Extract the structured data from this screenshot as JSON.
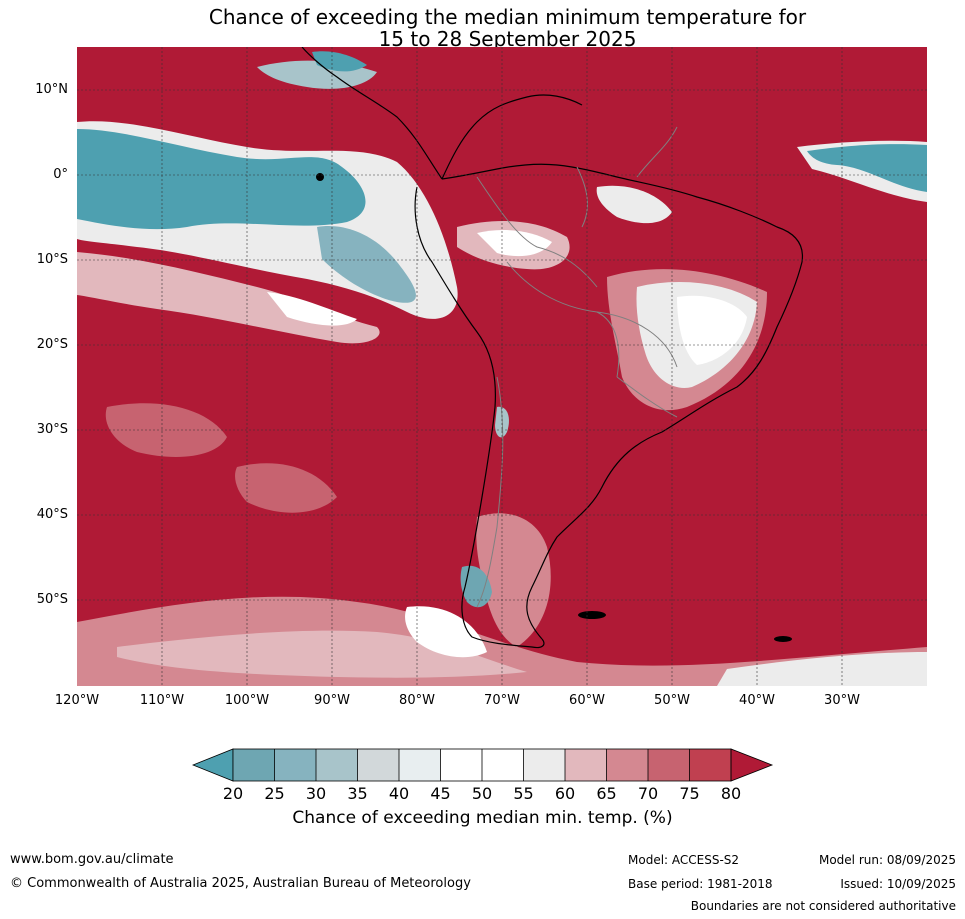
{
  "title": {
    "line1": "Chance of exceeding the median minimum temperature for",
    "line2": "15 to 28 September 2025"
  },
  "map": {
    "latitude_labels": [
      "10°N",
      "0°",
      "10°S",
      "20°S",
      "30°S",
      "40°S",
      "50°S"
    ],
    "longitude_labels": [
      "120°W",
      "110°W",
      "100°W",
      "90°W",
      "80°W",
      "70°W",
      "60°W",
      "50°W",
      "40°W",
      "30°W"
    ],
    "dominant_category": "80",
    "colors": {
      "above_80": "#b01a36",
      "c75_80": "#c04050",
      "c70_75": "#c76370",
      "c65_70": "#d48891",
      "c60_65": "#e2b8bd",
      "c55_60": "#ececec",
      "c45_55": "#ffffff",
      "c40_45": "#e8eef0",
      "c35_40": "#d2d8da",
      "c30_35": "#a8c4ca",
      "c25_30": "#86b3bf",
      "c20_25": "#6ea6b2",
      "below_20": "#4ea0b0",
      "land_outline": "#000000",
      "borders": "#808080",
      "grid": "#333333"
    }
  },
  "colorbar": {
    "ticks": [
      "20",
      "25",
      "30",
      "35",
      "40",
      "45",
      "50",
      "55",
      "60",
      "65",
      "70",
      "75",
      "80"
    ],
    "label": "Chance of exceeding median min. temp. (%)"
  },
  "footer": {
    "website": "www.bom.gov.au/climate",
    "copyright": "© Commonwealth of Australia 2025, Australian Bureau of Meteorology",
    "model": "Model: ACCESS-S2",
    "base_period": "Base period: 1981-2018",
    "model_run": "Model run: 08/09/2025",
    "issued": "Issued: 10/09/2025",
    "disclaimer": "Boundaries are not considered authoritative"
  }
}
